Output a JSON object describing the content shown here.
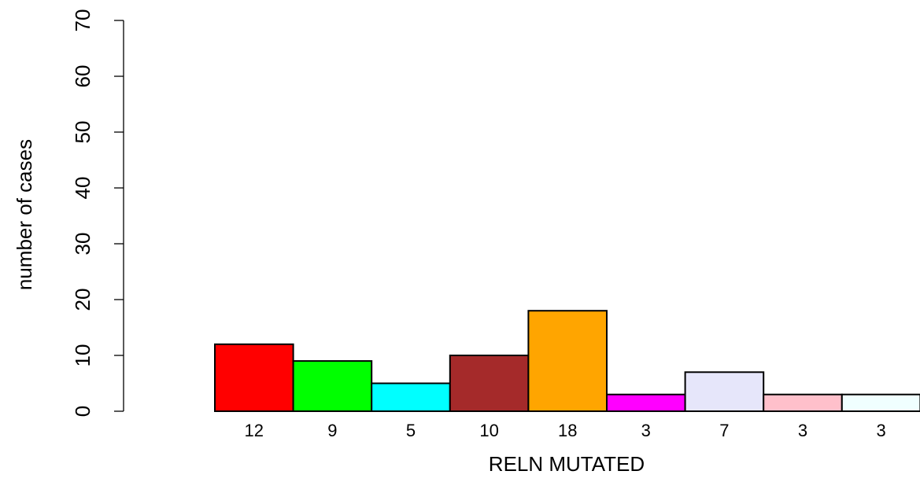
{
  "chart_data": {
    "type": "bar",
    "xlabel": "RELN MUTATED",
    "ylabel": "number of cases",
    "ylim": [
      0,
      70
    ],
    "yticks": [
      0,
      10,
      20,
      30,
      40,
      50,
      60,
      70
    ],
    "grid": false,
    "legend": "none",
    "categories": [
      "12",
      "9",
      "5",
      "10",
      "18",
      "3",
      "7",
      "3",
      "3"
    ],
    "values": [
      12,
      9,
      5,
      10,
      18,
      3,
      7,
      3,
      3
    ],
    "colors": [
      "#ff0000",
      "#00ff00",
      "#00ffff",
      "#a52a2a",
      "#ffa500",
      "#ff00ff",
      "#e6e6fa",
      "#ffc0cb",
      "#f0ffff"
    ]
  }
}
